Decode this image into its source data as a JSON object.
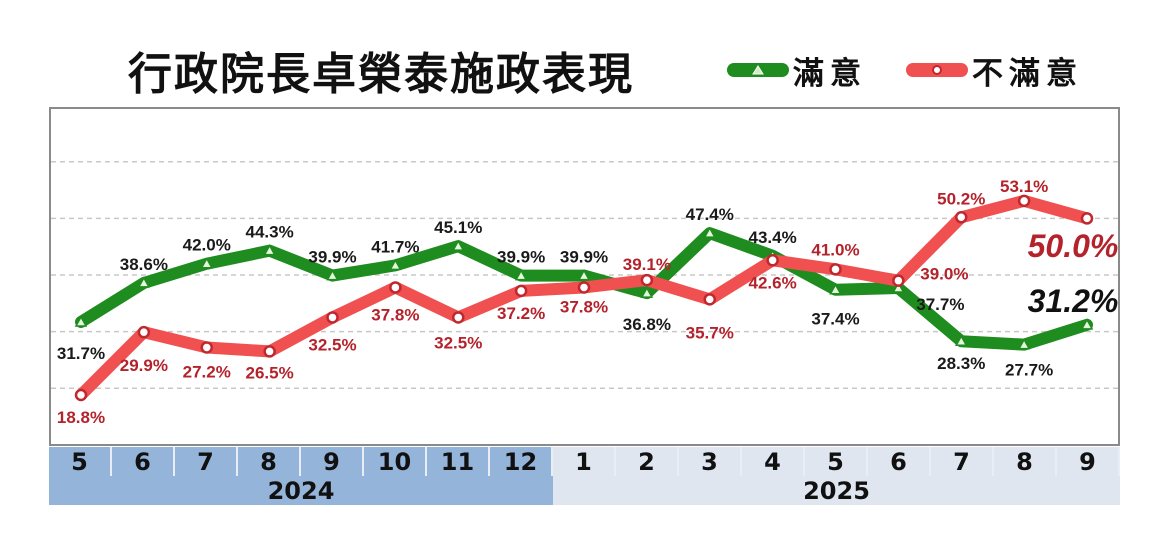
{
  "title": "行政院長卓榮泰施政表現",
  "legend": [
    {
      "label": "滿意",
      "color": "#1e8c1e",
      "marker": "triangle"
    },
    {
      "label": "不滿意",
      "color": "#f05050",
      "marker": "circle"
    }
  ],
  "axis": {
    "months": [
      "5",
      "6",
      "7",
      "8",
      "9",
      "10",
      "11",
      "12",
      "1",
      "2",
      "3",
      "4",
      "5",
      "6",
      "7",
      "8",
      "9"
    ],
    "years": [
      {
        "label": "2024",
        "span": 8,
        "bg": "#94b4d9"
      },
      {
        "label": "2025",
        "span": 9,
        "bg": "#dfe6f0"
      }
    ]
  },
  "chart_data": {
    "type": "line",
    "title": "行政院長卓榮泰施政表現",
    "xlabel": "",
    "ylabel": "",
    "x": [
      "2024-5",
      "2024-6",
      "2024-7",
      "2024-8",
      "2024-9",
      "2024-10",
      "2024-11",
      "2024-12",
      "2025-1",
      "2025-2",
      "2025-3",
      "2025-4",
      "2025-5",
      "2025-6",
      "2025-7",
      "2025-8",
      "2025-9"
    ],
    "categories": [
      "5",
      "6",
      "7",
      "8",
      "9",
      "10",
      "11",
      "12",
      "1",
      "2",
      "3",
      "4",
      "5",
      "6",
      "7",
      "8",
      "9"
    ],
    "series": [
      {
        "name": "滿意",
        "color": "#1e8c1e",
        "values": [
          31.7,
          38.6,
          42.0,
          44.3,
          39.9,
          41.7,
          45.1,
          39.9,
          39.9,
          36.8,
          47.4,
          43.4,
          37.4,
          37.7,
          28.3,
          27.7,
          31.2
        ]
      },
      {
        "name": "不滿意",
        "color": "#f05050",
        "values": [
          18.8,
          29.9,
          27.2,
          26.5,
          32.5,
          37.8,
          32.5,
          37.2,
          37.8,
          39.1,
          35.7,
          42.6,
          41.0,
          39.0,
          50.2,
          53.1,
          50.0
        ]
      }
    ],
    "labels": {
      "滿意": [
        "31.7%",
        "38.6%",
        "42.0%",
        "44.3%",
        "39.9%",
        "41.7%",
        "45.1%",
        "39.9%",
        "39.9%",
        "36.8%",
        "47.4%",
        "43.4%",
        "37.4%",
        "37.7%",
        "28.3%",
        "27.7%",
        "31.2%"
      ],
      "不滿意": [
        "18.8%",
        "29.9%",
        "27.2%",
        "26.5%",
        "32.5%",
        "37.8%",
        "32.5%",
        "37.2%",
        "37.8%",
        "39.1%",
        "35.7%",
        "42.6%",
        "41.0%",
        "39.0%",
        "50.2%",
        "53.1%",
        "50.0%"
      ]
    },
    "highlight": {
      "滿意": "31.2%",
      "不滿意": "50.0%"
    },
    "ylim": [
      14,
      68
    ],
    "grid": true,
    "legend_position": "top-right"
  }
}
